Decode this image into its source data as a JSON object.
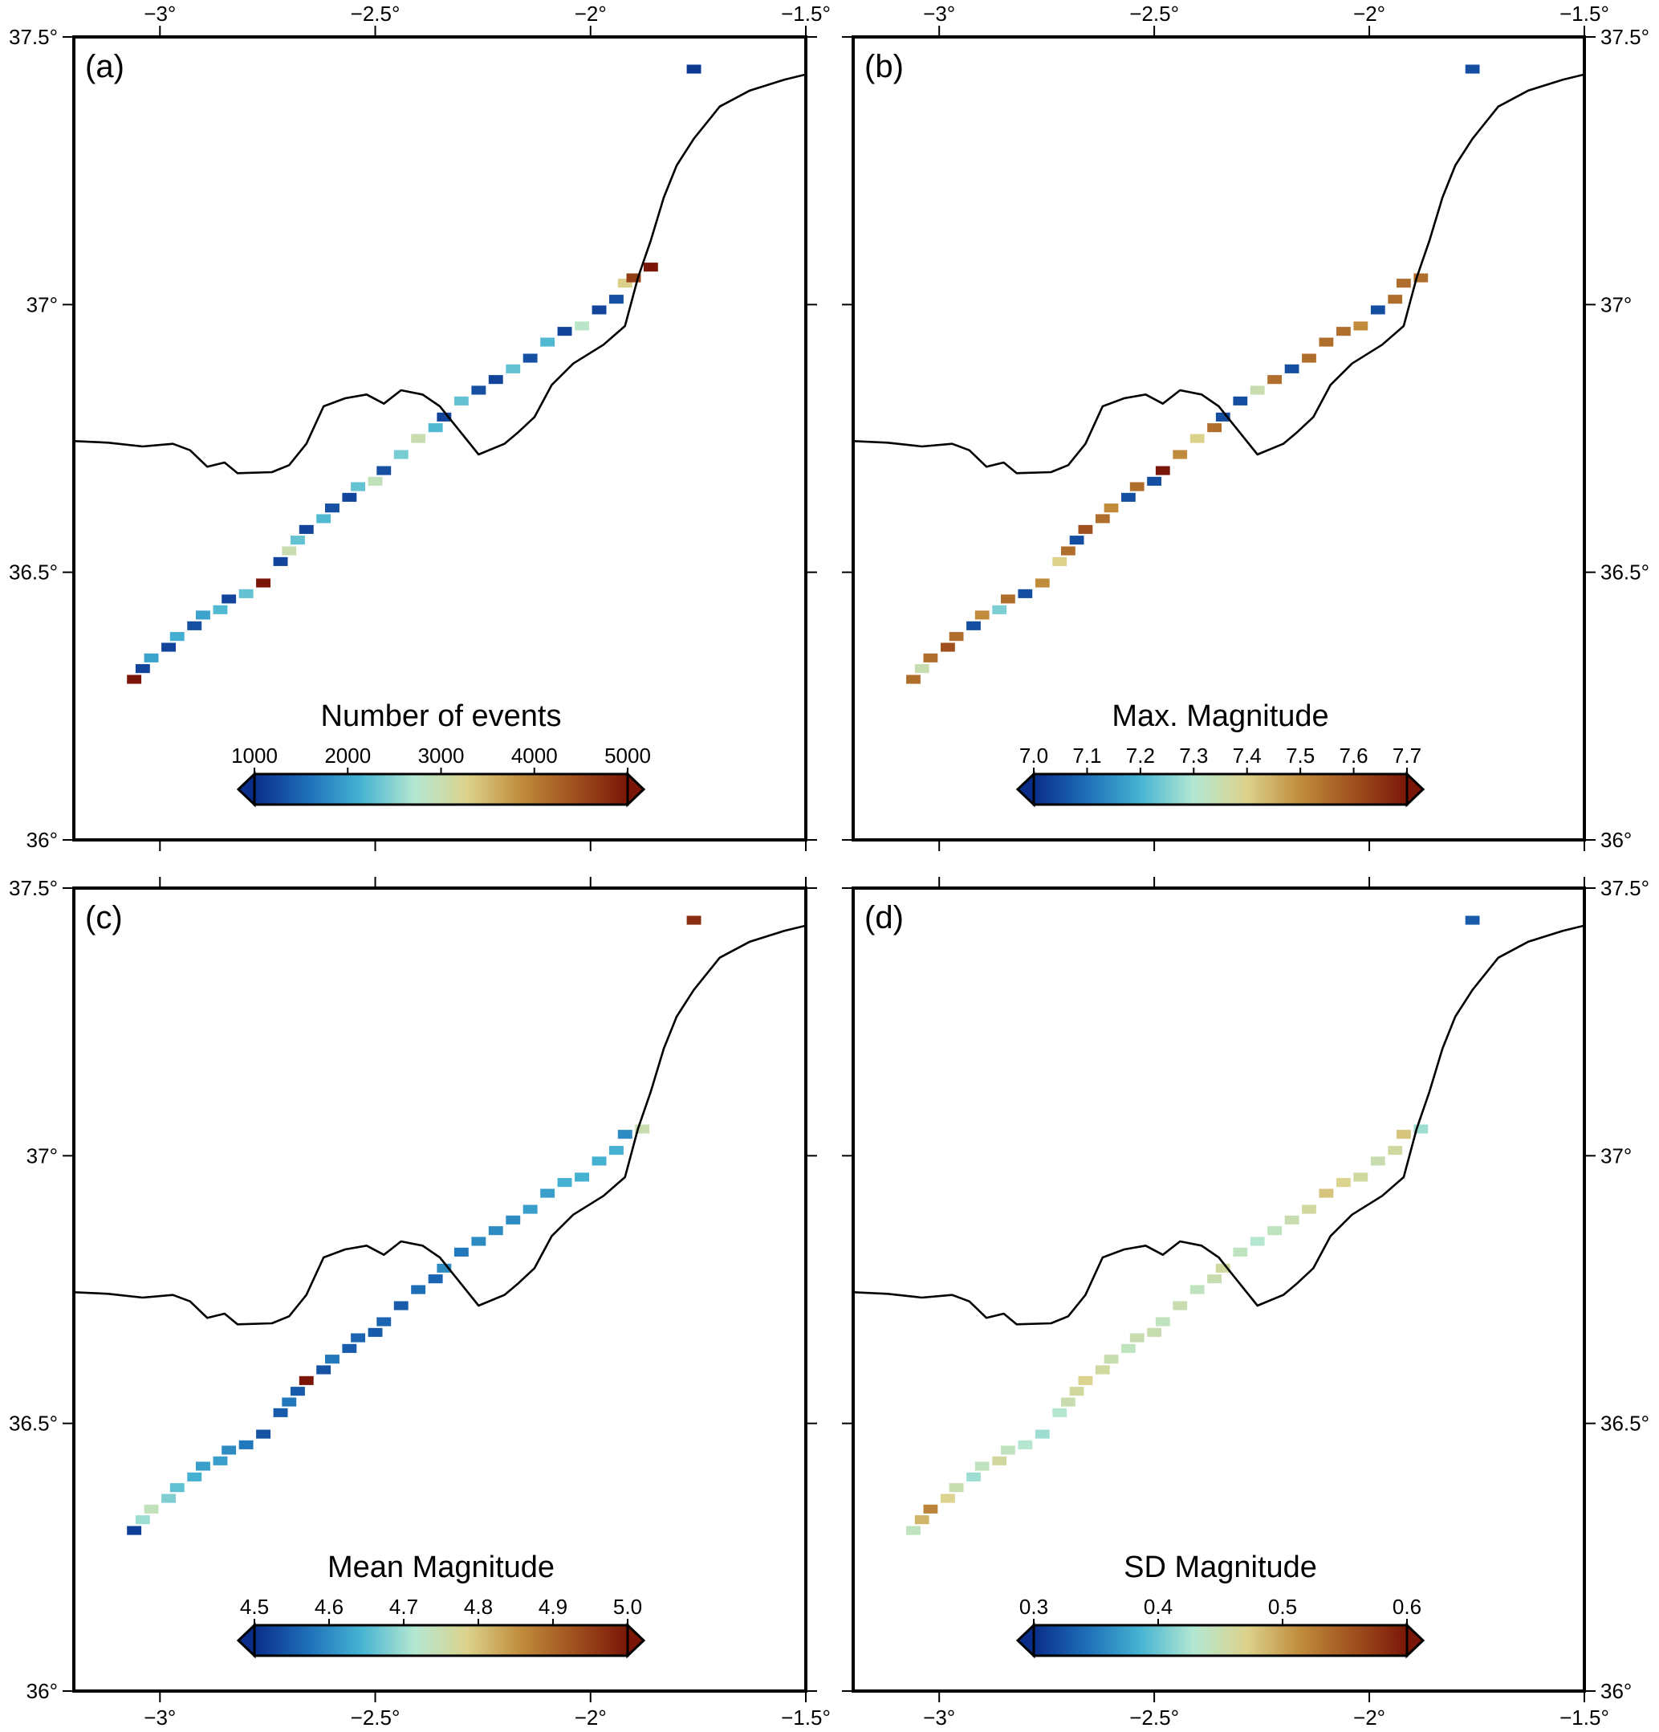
{
  "figure": {
    "description_title": "",
    "axes": {
      "lon_range": [
        -3.2,
        -1.5
      ],
      "lat_range": [
        36.0,
        37.5
      ],
      "lon_ticks": [
        -3.0,
        -2.5,
        -2.0,
        -1.5
      ],
      "lat_ticks": [
        36.0,
        36.5,
        37.0,
        37.5
      ],
      "lon_tick_labels": [
        "−3°",
        "−2.5°",
        "−2°",
        "−1.5°"
      ],
      "lat_tick_labels": [
        "36°",
        "36.5°",
        "37°",
        "37.5°"
      ]
    },
    "coastline": {
      "color": "#000000",
      "land_coast": [
        [
          -3.2,
          36.745
        ],
        [
          -3.12,
          36.742
        ],
        [
          -3.04,
          36.735
        ],
        [
          -2.97,
          36.74
        ],
        [
          -2.93,
          36.728
        ],
        [
          -2.89,
          36.697
        ],
        [
          -2.85,
          36.705
        ],
        [
          -2.82,
          36.685
        ],
        [
          -2.74,
          36.687
        ],
        [
          -2.7,
          36.7
        ],
        [
          -2.66,
          36.74
        ],
        [
          -2.62,
          36.81
        ],
        [
          -2.57,
          36.825
        ],
        [
          -2.52,
          36.832
        ],
        [
          -2.48,
          36.815
        ],
        [
          -2.44,
          36.84
        ],
        [
          -2.39,
          36.832
        ],
        [
          -2.35,
          36.81
        ],
        [
          -2.31,
          36.77
        ],
        [
          -2.26,
          36.72
        ],
        [
          -2.2,
          36.74
        ],
        [
          -2.17,
          36.76
        ],
        [
          -2.13,
          36.79
        ],
        [
          -2.09,
          36.85
        ],
        [
          -2.04,
          36.89
        ],
        [
          -1.97,
          36.925
        ],
        [
          -1.92,
          36.96
        ],
        [
          -1.89,
          37.05
        ],
        [
          -1.86,
          37.12
        ],
        [
          -1.83,
          37.2
        ],
        [
          -1.8,
          37.26
        ],
        [
          -1.76,
          37.31
        ],
        [
          -1.7,
          37.37
        ],
        [
          -1.63,
          37.4
        ],
        [
          -1.55,
          37.42
        ],
        [
          -1.5,
          37.43
        ]
      ]
    },
    "cell_deg": 0.0333,
    "colormap": [
      "#0a2d8a",
      "#1e6fb8",
      "#46b4d2",
      "#b4e8d2",
      "#dcd28c",
      "#c08c3c",
      "#a0501e",
      "#7a1608"
    ]
  },
  "chart_data": [
    {
      "type": "heatmap",
      "panel": "(a)",
      "colorbar_title": "Number of events",
      "colorbar_ticks": [
        "1000",
        "2000",
        "3000",
        "4000",
        "5000"
      ],
      "vmin": 1000,
      "vmax": 5000,
      "cells": [
        [
          -3.06,
          36.3,
          5000
        ],
        [
          -3.04,
          36.32,
          1200
        ],
        [
          -3.02,
          36.34,
          2000
        ],
        [
          -2.98,
          36.36,
          1200
        ],
        [
          -2.96,
          36.38,
          2100
        ],
        [
          -2.92,
          36.4,
          1300
        ],
        [
          -2.9,
          36.42,
          2000
        ],
        [
          -2.86,
          36.43,
          2200
        ],
        [
          -2.84,
          36.45,
          1200
        ],
        [
          -2.8,
          36.46,
          2300
        ],
        [
          -2.76,
          36.48,
          5000
        ],
        [
          -2.72,
          36.52,
          1200
        ],
        [
          -2.7,
          36.54,
          3000
        ],
        [
          -2.68,
          36.56,
          2300
        ],
        [
          -2.66,
          36.58,
          1200
        ],
        [
          -2.62,
          36.6,
          2200
        ],
        [
          -2.6,
          36.62,
          1300
        ],
        [
          -2.56,
          36.64,
          1200
        ],
        [
          -2.54,
          36.66,
          2300
        ],
        [
          -2.5,
          36.67,
          2900
        ],
        [
          -2.48,
          36.69,
          1300
        ],
        [
          -2.44,
          36.72,
          2400
        ],
        [
          -2.4,
          36.75,
          3000
        ],
        [
          -2.36,
          36.77,
          2200
        ],
        [
          -2.34,
          36.79,
          1200
        ],
        [
          -2.3,
          36.82,
          2300
        ],
        [
          -2.26,
          36.84,
          1300
        ],
        [
          -2.22,
          36.86,
          1200
        ],
        [
          -2.18,
          36.88,
          2300
        ],
        [
          -2.14,
          36.9,
          1300
        ],
        [
          -2.1,
          36.93,
          2200
        ],
        [
          -2.06,
          36.95,
          1200
        ],
        [
          -2.02,
          36.96,
          2800
        ],
        [
          -1.98,
          36.99,
          1200
        ],
        [
          -1.94,
          37.01,
          1300
        ],
        [
          -1.92,
          37.04,
          3300
        ],
        [
          -1.9,
          37.05,
          4600
        ],
        [
          -1.86,
          37.07,
          5000
        ],
        [
          -1.76,
          37.44,
          1100
        ]
      ]
    },
    {
      "type": "heatmap",
      "panel": "(b)",
      "colorbar_title": "Max. Magnitude",
      "colorbar_ticks": [
        "7.0",
        "7.1",
        "7.2",
        "7.3",
        "7.4",
        "7.5",
        "7.6",
        "7.7"
      ],
      "vmin": 7.0,
      "vmax": 7.7,
      "cells": [
        [
          -3.06,
          36.3,
          7.55
        ],
        [
          -3.04,
          36.32,
          7.35
        ],
        [
          -3.02,
          36.34,
          7.55
        ],
        [
          -2.98,
          36.36,
          7.6
        ],
        [
          -2.96,
          36.38,
          7.55
        ],
        [
          -2.92,
          36.4,
          7.05
        ],
        [
          -2.9,
          36.42,
          7.5
        ],
        [
          -2.86,
          36.43,
          7.25
        ],
        [
          -2.84,
          36.45,
          7.55
        ],
        [
          -2.8,
          36.46,
          7.05
        ],
        [
          -2.76,
          36.48,
          7.5
        ],
        [
          -2.72,
          36.52,
          7.4
        ],
        [
          -2.7,
          36.54,
          7.55
        ],
        [
          -2.68,
          36.56,
          7.05
        ],
        [
          -2.66,
          36.58,
          7.6
        ],
        [
          -2.62,
          36.6,
          7.55
        ],
        [
          -2.6,
          36.62,
          7.5
        ],
        [
          -2.56,
          36.64,
          7.05
        ],
        [
          -2.54,
          36.66,
          7.55
        ],
        [
          -2.5,
          36.67,
          7.05
        ],
        [
          -2.48,
          36.69,
          7.7
        ],
        [
          -2.44,
          36.72,
          7.5
        ],
        [
          -2.4,
          36.75,
          7.4
        ],
        [
          -2.36,
          36.77,
          7.55
        ],
        [
          -2.34,
          36.79,
          7.05
        ],
        [
          -2.3,
          36.82,
          7.05
        ],
        [
          -2.26,
          36.84,
          7.35
        ],
        [
          -2.22,
          36.86,
          7.55
        ],
        [
          -2.18,
          36.88,
          7.05
        ],
        [
          -2.14,
          36.9,
          7.55
        ],
        [
          -2.1,
          36.93,
          7.55
        ],
        [
          -2.06,
          36.95,
          7.55
        ],
        [
          -2.02,
          36.96,
          7.5
        ],
        [
          -1.98,
          36.99,
          7.05
        ],
        [
          -1.94,
          37.01,
          7.55
        ],
        [
          -1.92,
          37.04,
          7.55
        ],
        [
          -1.88,
          37.05,
          7.55
        ],
        [
          -1.76,
          37.44,
          7.05
        ]
      ]
    },
    {
      "type": "heatmap",
      "panel": "(c)",
      "colorbar_title": "Mean Magnitude",
      "colorbar_ticks": [
        "4.5",
        "4.6",
        "4.7",
        "4.8",
        "4.9",
        "5.0"
      ],
      "vmin": 4.5,
      "vmax": 5.0,
      "cells": [
        [
          -3.06,
          36.3,
          4.52
        ],
        [
          -3.04,
          36.32,
          4.7
        ],
        [
          -3.02,
          36.34,
          4.74
        ],
        [
          -2.98,
          36.36,
          4.68
        ],
        [
          -2.96,
          36.38,
          4.66
        ],
        [
          -2.92,
          36.4,
          4.64
        ],
        [
          -2.9,
          36.42,
          4.62
        ],
        [
          -2.86,
          36.43,
          4.62
        ],
        [
          -2.84,
          36.45,
          4.6
        ],
        [
          -2.8,
          36.46,
          4.58
        ],
        [
          -2.76,
          36.48,
          4.54
        ],
        [
          -2.72,
          36.52,
          4.55
        ],
        [
          -2.7,
          36.54,
          4.58
        ],
        [
          -2.68,
          36.56,
          4.55
        ],
        [
          -2.66,
          36.58,
          5.0
        ],
        [
          -2.62,
          36.6,
          4.54
        ],
        [
          -2.6,
          36.62,
          4.58
        ],
        [
          -2.56,
          36.64,
          4.55
        ],
        [
          -2.54,
          36.66,
          4.56
        ],
        [
          -2.5,
          36.67,
          4.55
        ],
        [
          -2.48,
          36.69,
          4.56
        ],
        [
          -2.44,
          36.72,
          4.55
        ],
        [
          -2.4,
          36.75,
          4.57
        ],
        [
          -2.36,
          36.77,
          4.56
        ],
        [
          -2.34,
          36.79,
          4.6
        ],
        [
          -2.3,
          36.82,
          4.58
        ],
        [
          -2.26,
          36.84,
          4.6
        ],
        [
          -2.22,
          36.86,
          4.6
        ],
        [
          -2.18,
          36.88,
          4.6
        ],
        [
          -2.14,
          36.9,
          4.62
        ],
        [
          -2.1,
          36.93,
          4.62
        ],
        [
          -2.06,
          36.95,
          4.64
        ],
        [
          -2.02,
          36.96,
          4.64
        ],
        [
          -1.98,
          36.99,
          4.64
        ],
        [
          -1.94,
          37.01,
          4.64
        ],
        [
          -1.92,
          37.04,
          4.6
        ],
        [
          -1.88,
          37.05,
          4.75
        ],
        [
          -1.76,
          37.44,
          4.97
        ]
      ]
    },
    {
      "type": "heatmap",
      "panel": "(d)",
      "colorbar_title": "SD Magnitude",
      "colorbar_ticks": [
        "0.3",
        "0.4",
        "0.5",
        "0.6"
      ],
      "vmin": 0.3,
      "vmax": 0.6,
      "cells": [
        [
          -3.06,
          36.3,
          0.44
        ],
        [
          -3.04,
          36.32,
          0.49
        ],
        [
          -3.02,
          36.34,
          0.52
        ],
        [
          -2.98,
          36.36,
          0.47
        ],
        [
          -2.96,
          36.38,
          0.45
        ],
        [
          -2.92,
          36.4,
          0.42
        ],
        [
          -2.9,
          36.42,
          0.44
        ],
        [
          -2.86,
          36.43,
          0.46
        ],
        [
          -2.84,
          36.45,
          0.44
        ],
        [
          -2.8,
          36.46,
          0.43
        ],
        [
          -2.76,
          36.48,
          0.42
        ],
        [
          -2.72,
          36.52,
          0.43
        ],
        [
          -2.7,
          36.54,
          0.45
        ],
        [
          -2.68,
          36.56,
          0.46
        ],
        [
          -2.66,
          36.58,
          0.47
        ],
        [
          -2.62,
          36.6,
          0.46
        ],
        [
          -2.6,
          36.62,
          0.45
        ],
        [
          -2.56,
          36.64,
          0.44
        ],
        [
          -2.54,
          36.66,
          0.45
        ],
        [
          -2.5,
          36.67,
          0.45
        ],
        [
          -2.48,
          36.69,
          0.44
        ],
        [
          -2.44,
          36.72,
          0.45
        ],
        [
          -2.4,
          36.75,
          0.44
        ],
        [
          -2.36,
          36.77,
          0.45
        ],
        [
          -2.34,
          36.79,
          0.46
        ],
        [
          -2.3,
          36.82,
          0.44
        ],
        [
          -2.26,
          36.84,
          0.43
        ],
        [
          -2.22,
          36.86,
          0.44
        ],
        [
          -2.18,
          36.88,
          0.45
        ],
        [
          -2.14,
          36.9,
          0.46
        ],
        [
          -2.1,
          36.93,
          0.48
        ],
        [
          -2.06,
          36.95,
          0.47
        ],
        [
          -2.02,
          36.96,
          0.46
        ],
        [
          -1.98,
          36.99,
          0.45
        ],
        [
          -1.94,
          37.01,
          0.46
        ],
        [
          -1.92,
          37.04,
          0.48
        ],
        [
          -1.88,
          37.05,
          0.42
        ],
        [
          -1.76,
          37.44,
          0.33
        ]
      ]
    }
  ]
}
